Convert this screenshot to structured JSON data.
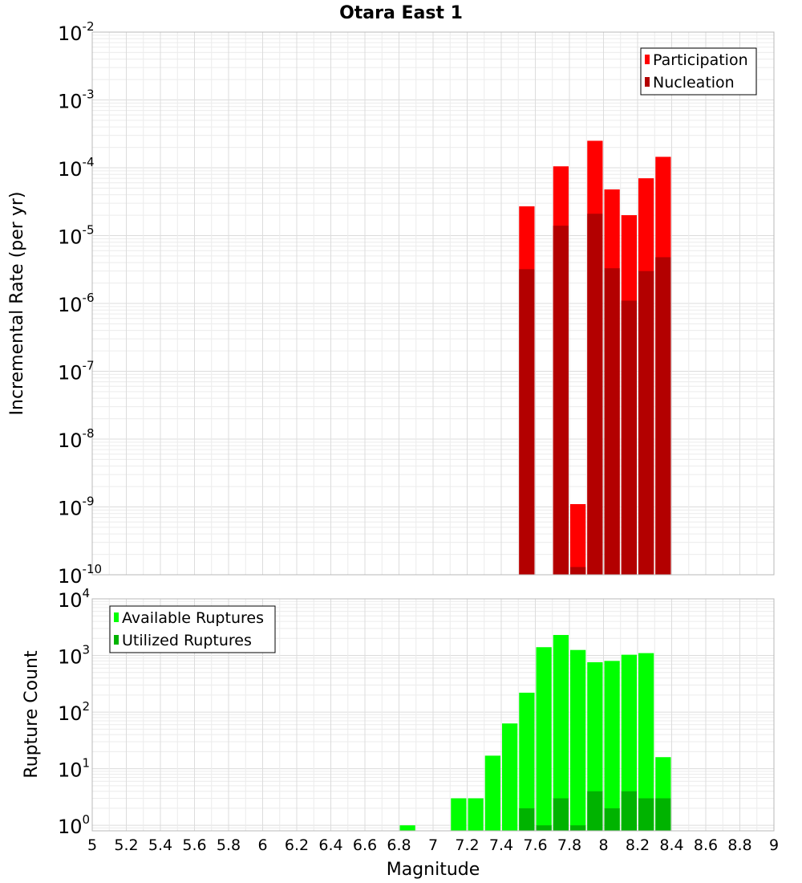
{
  "chart_data": {
    "title": "Otara East 1",
    "x": {
      "label": "Magnitude",
      "range": [
        5,
        9
      ],
      "tick_labels": [
        "5",
        "5.2",
        "5.4",
        "5.6",
        "5.8",
        "6",
        "6.2",
        "6.4",
        "6.6",
        "6.8",
        "7",
        "7.2",
        "7.4",
        "7.6",
        "7.8",
        "8",
        "8.2",
        "8.4",
        "8.6",
        "8.8",
        "9"
      ]
    },
    "panels": [
      {
        "type": "bar",
        "ylabel": "Incremental Rate (per yr)",
        "yscale": "log",
        "ylim": [
          1e-10,
          0.01
        ],
        "y_tick_exponents": [
          -10,
          -9,
          -8,
          -7,
          -6,
          -5,
          -4,
          -3,
          -2
        ],
        "grid": true,
        "legend_position": "top-right",
        "bin_width": 0.1,
        "series": [
          {
            "name": "Participation",
            "color": "#ff0000",
            "points": [
              {
                "x": 7.55,
                "y": 2.7e-05
              },
              {
                "x": 7.75,
                "y": 0.000105
              },
              {
                "x": 7.85,
                "y": 1.1e-09
              },
              {
                "x": 7.95,
                "y": 0.00025
              },
              {
                "x": 8.05,
                "y": 4.8e-05
              },
              {
                "x": 8.15,
                "y": 2e-05
              },
              {
                "x": 8.25,
                "y": 7e-05
              },
              {
                "x": 8.35,
                "y": 0.000145
              }
            ]
          },
          {
            "name": "Nucleation",
            "color": "#b30000",
            "points": [
              {
                "x": 7.55,
                "y": 3.2e-06
              },
              {
                "x": 7.75,
                "y": 1.4e-05
              },
              {
                "x": 7.85,
                "y": 1.3e-10
              },
              {
                "x": 7.95,
                "y": 2.1e-05
              },
              {
                "x": 8.05,
                "y": 3.3e-06
              },
              {
                "x": 8.15,
                "y": 1.1e-06
              },
              {
                "x": 8.25,
                "y": 3e-06
              },
              {
                "x": 8.35,
                "y": 4.8e-06
              }
            ]
          }
        ]
      },
      {
        "type": "bar",
        "ylabel": "Rupture Count",
        "yscale": "log",
        "ylim": [
          0.8,
          10000
        ],
        "y_tick_exponents": [
          0,
          1,
          2,
          3,
          4
        ],
        "grid": true,
        "legend_position": "top-left",
        "bin_width": 0.1,
        "series": [
          {
            "name": "Available Ruptures",
            "color": "#00ff00",
            "points": [
              {
                "x": 6.85,
                "y": 1
              },
              {
                "x": 7.15,
                "y": 3
              },
              {
                "x": 7.25,
                "y": 3
              },
              {
                "x": 7.35,
                "y": 17
              },
              {
                "x": 7.45,
                "y": 63
              },
              {
                "x": 7.55,
                "y": 220
              },
              {
                "x": 7.65,
                "y": 1400
              },
              {
                "x": 7.75,
                "y": 2300
              },
              {
                "x": 7.85,
                "y": 1250
              },
              {
                "x": 7.95,
                "y": 760
              },
              {
                "x": 8.05,
                "y": 800
              },
              {
                "x": 8.15,
                "y": 1030
              },
              {
                "x": 8.25,
                "y": 1100
              },
              {
                "x": 8.35,
                "y": 16
              }
            ]
          },
          {
            "name": "Utilized Ruptures",
            "color": "#00b300",
            "points": [
              {
                "x": 7.55,
                "y": 2
              },
              {
                "x": 7.65,
                "y": 1
              },
              {
                "x": 7.75,
                "y": 3
              },
              {
                "x": 7.85,
                "y": 1
              },
              {
                "x": 7.95,
                "y": 4
              },
              {
                "x": 8.05,
                "y": 2
              },
              {
                "x": 8.15,
                "y": 4
              },
              {
                "x": 8.25,
                "y": 3
              },
              {
                "x": 8.35,
                "y": 3
              }
            ]
          }
        ]
      }
    ]
  }
}
